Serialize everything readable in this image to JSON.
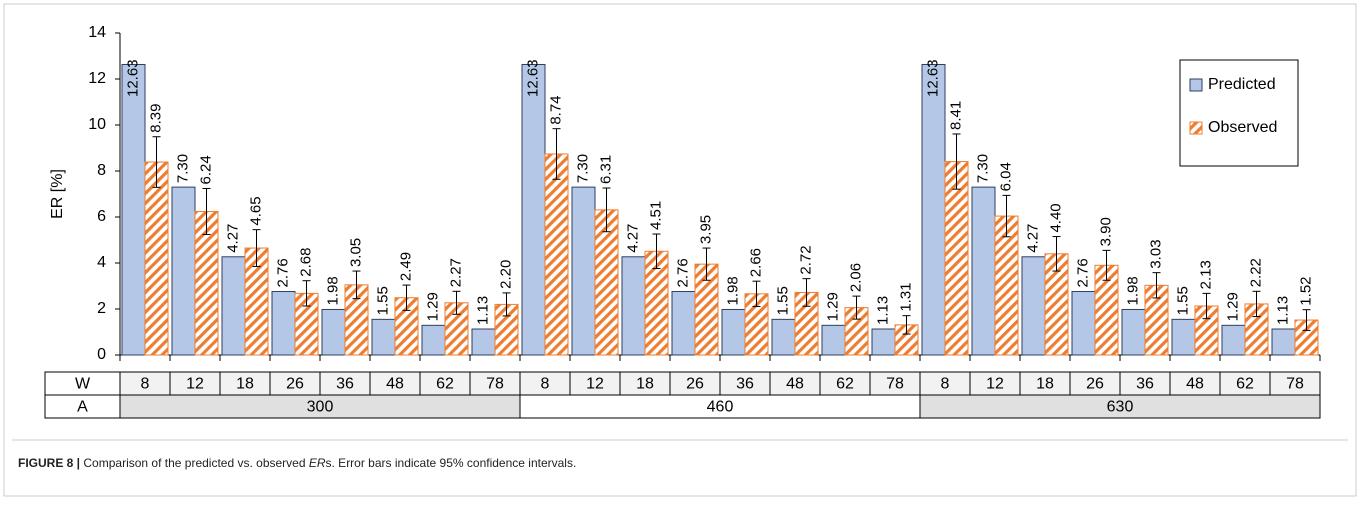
{
  "chart_data": {
    "type": "bar",
    "y_label": "ER [%]",
    "row_labels": [
      "W",
      "A"
    ],
    "categories": [
      "8",
      "12",
      "18",
      "26",
      "36",
      "48",
      "62",
      "78",
      "8",
      "12",
      "18",
      "26",
      "36",
      "48",
      "62",
      "78",
      "8",
      "12",
      "18",
      "26",
      "36",
      "48",
      "62",
      "78"
    ],
    "group_labels": [
      "300",
      "460",
      "630"
    ],
    "series": [
      {
        "name": "Predicted",
        "color": "#b4c7e7",
        "values": [
          12.63,
          7.3,
          4.27,
          2.76,
          1.98,
          1.55,
          1.29,
          1.13,
          12.63,
          7.3,
          4.27,
          2.76,
          1.98,
          1.55,
          1.29,
          1.13,
          12.63,
          7.3,
          4.27,
          2.76,
          1.98,
          1.55,
          1.29,
          1.13
        ],
        "value_labels": [
          "12.63",
          "7.30",
          "4.27",
          "2.76",
          "1.98",
          "1.55",
          "1.29",
          "1.13",
          "12.63",
          "7.30",
          "4.27",
          "2.76",
          "1.98",
          "1.55",
          "1.29",
          "1.13",
          "12.63",
          "7.30",
          "4.27",
          "2.76",
          "1.98",
          "1.55",
          "1.29",
          "1.13"
        ]
      },
      {
        "name": "Observed",
        "color": "#ed7d31",
        "pattern": "hatch",
        "values": [
          8.39,
          6.24,
          4.65,
          2.68,
          3.05,
          2.49,
          2.27,
          2.2,
          8.74,
          6.31,
          4.51,
          3.95,
          2.66,
          2.72,
          2.06,
          1.31,
          8.41,
          6.04,
          4.4,
          3.9,
          3.03,
          2.13,
          2.22,
          1.52
        ],
        "value_labels": [
          "8.39",
          "6.24",
          "4.65",
          "2.68",
          "3.05",
          "2.49",
          "2.27",
          "2.20",
          "8.74",
          "6.31",
          "4.51",
          "3.95",
          "2.66",
          "2.72",
          "2.06",
          "1.31",
          "8.41",
          "6.04",
          "4.40",
          "3.90",
          "3.03",
          "2.13",
          "2.22",
          "1.52"
        ],
        "errors": [
          1.1,
          1.0,
          0.8,
          0.55,
          0.6,
          0.55,
          0.5,
          0.5,
          1.1,
          0.95,
          0.75,
          0.7,
          0.55,
          0.6,
          0.5,
          0.4,
          1.2,
          0.9,
          0.75,
          0.65,
          0.55,
          0.55,
          0.55,
          0.45
        ]
      }
    ],
    "ylim": [
      0,
      14
    ],
    "yticks": [
      0,
      2,
      4,
      6,
      8,
      10,
      12,
      14
    ],
    "legend": "top-right"
  },
  "caption": {
    "label": "FIGURE 8 |",
    "text1": "Comparison of the predicted vs. observed ",
    "em": "ER",
    "text2": "s. Error bars indicate 95% confidence intervals."
  }
}
